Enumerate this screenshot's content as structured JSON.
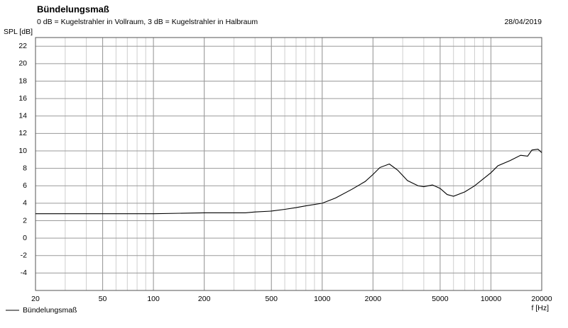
{
  "chart_data": {
    "type": "line",
    "title": "Bündelungsmaß",
    "subtitle": "0 dB = Kugelstrahler in Vollraum, 3 dB = Kugelstrahler in Halbraum",
    "date": "28/04/2019",
    "y_label": "SPL [dB]",
    "x_label": "f [Hz]",
    "x_scale": "log",
    "grid": true,
    "legend": "bottom-left",
    "xlim": [
      20,
      20000
    ],
    "ylim": [
      -6,
      23
    ],
    "xticks": [
      20,
      50,
      100,
      200,
      500,
      1000,
      2000,
      5000,
      10000,
      20000
    ],
    "yticks": [
      -4,
      -2,
      0,
      2,
      4,
      6,
      8,
      10,
      12,
      14,
      16,
      18,
      20,
      22
    ],
    "x": [
      20,
      50,
      100,
      200,
      350,
      400,
      500,
      600,
      700,
      800,
      1000,
      1200,
      1500,
      1800,
      2000,
      2200,
      2500,
      2800,
      3200,
      3700,
      4000,
      4500,
      5000,
      5500,
      6000,
      7000,
      8000,
      10000,
      11000,
      13000,
      15000,
      16500,
      17500,
      19000,
      20000
    ],
    "series": [
      {
        "name": "Bündelungsmaß",
        "color": "#000000",
        "values": [
          2.8,
          2.8,
          2.8,
          2.9,
          2.9,
          3.0,
          3.1,
          3.3,
          3.5,
          3.7,
          4.0,
          4.6,
          5.6,
          6.5,
          7.3,
          8.1,
          8.5,
          7.8,
          6.6,
          6.0,
          5.9,
          6.1,
          5.7,
          5.0,
          4.8,
          5.3,
          6.0,
          7.5,
          8.3,
          8.9,
          9.5,
          9.4,
          10.1,
          10.2,
          9.8
        ]
      }
    ]
  }
}
